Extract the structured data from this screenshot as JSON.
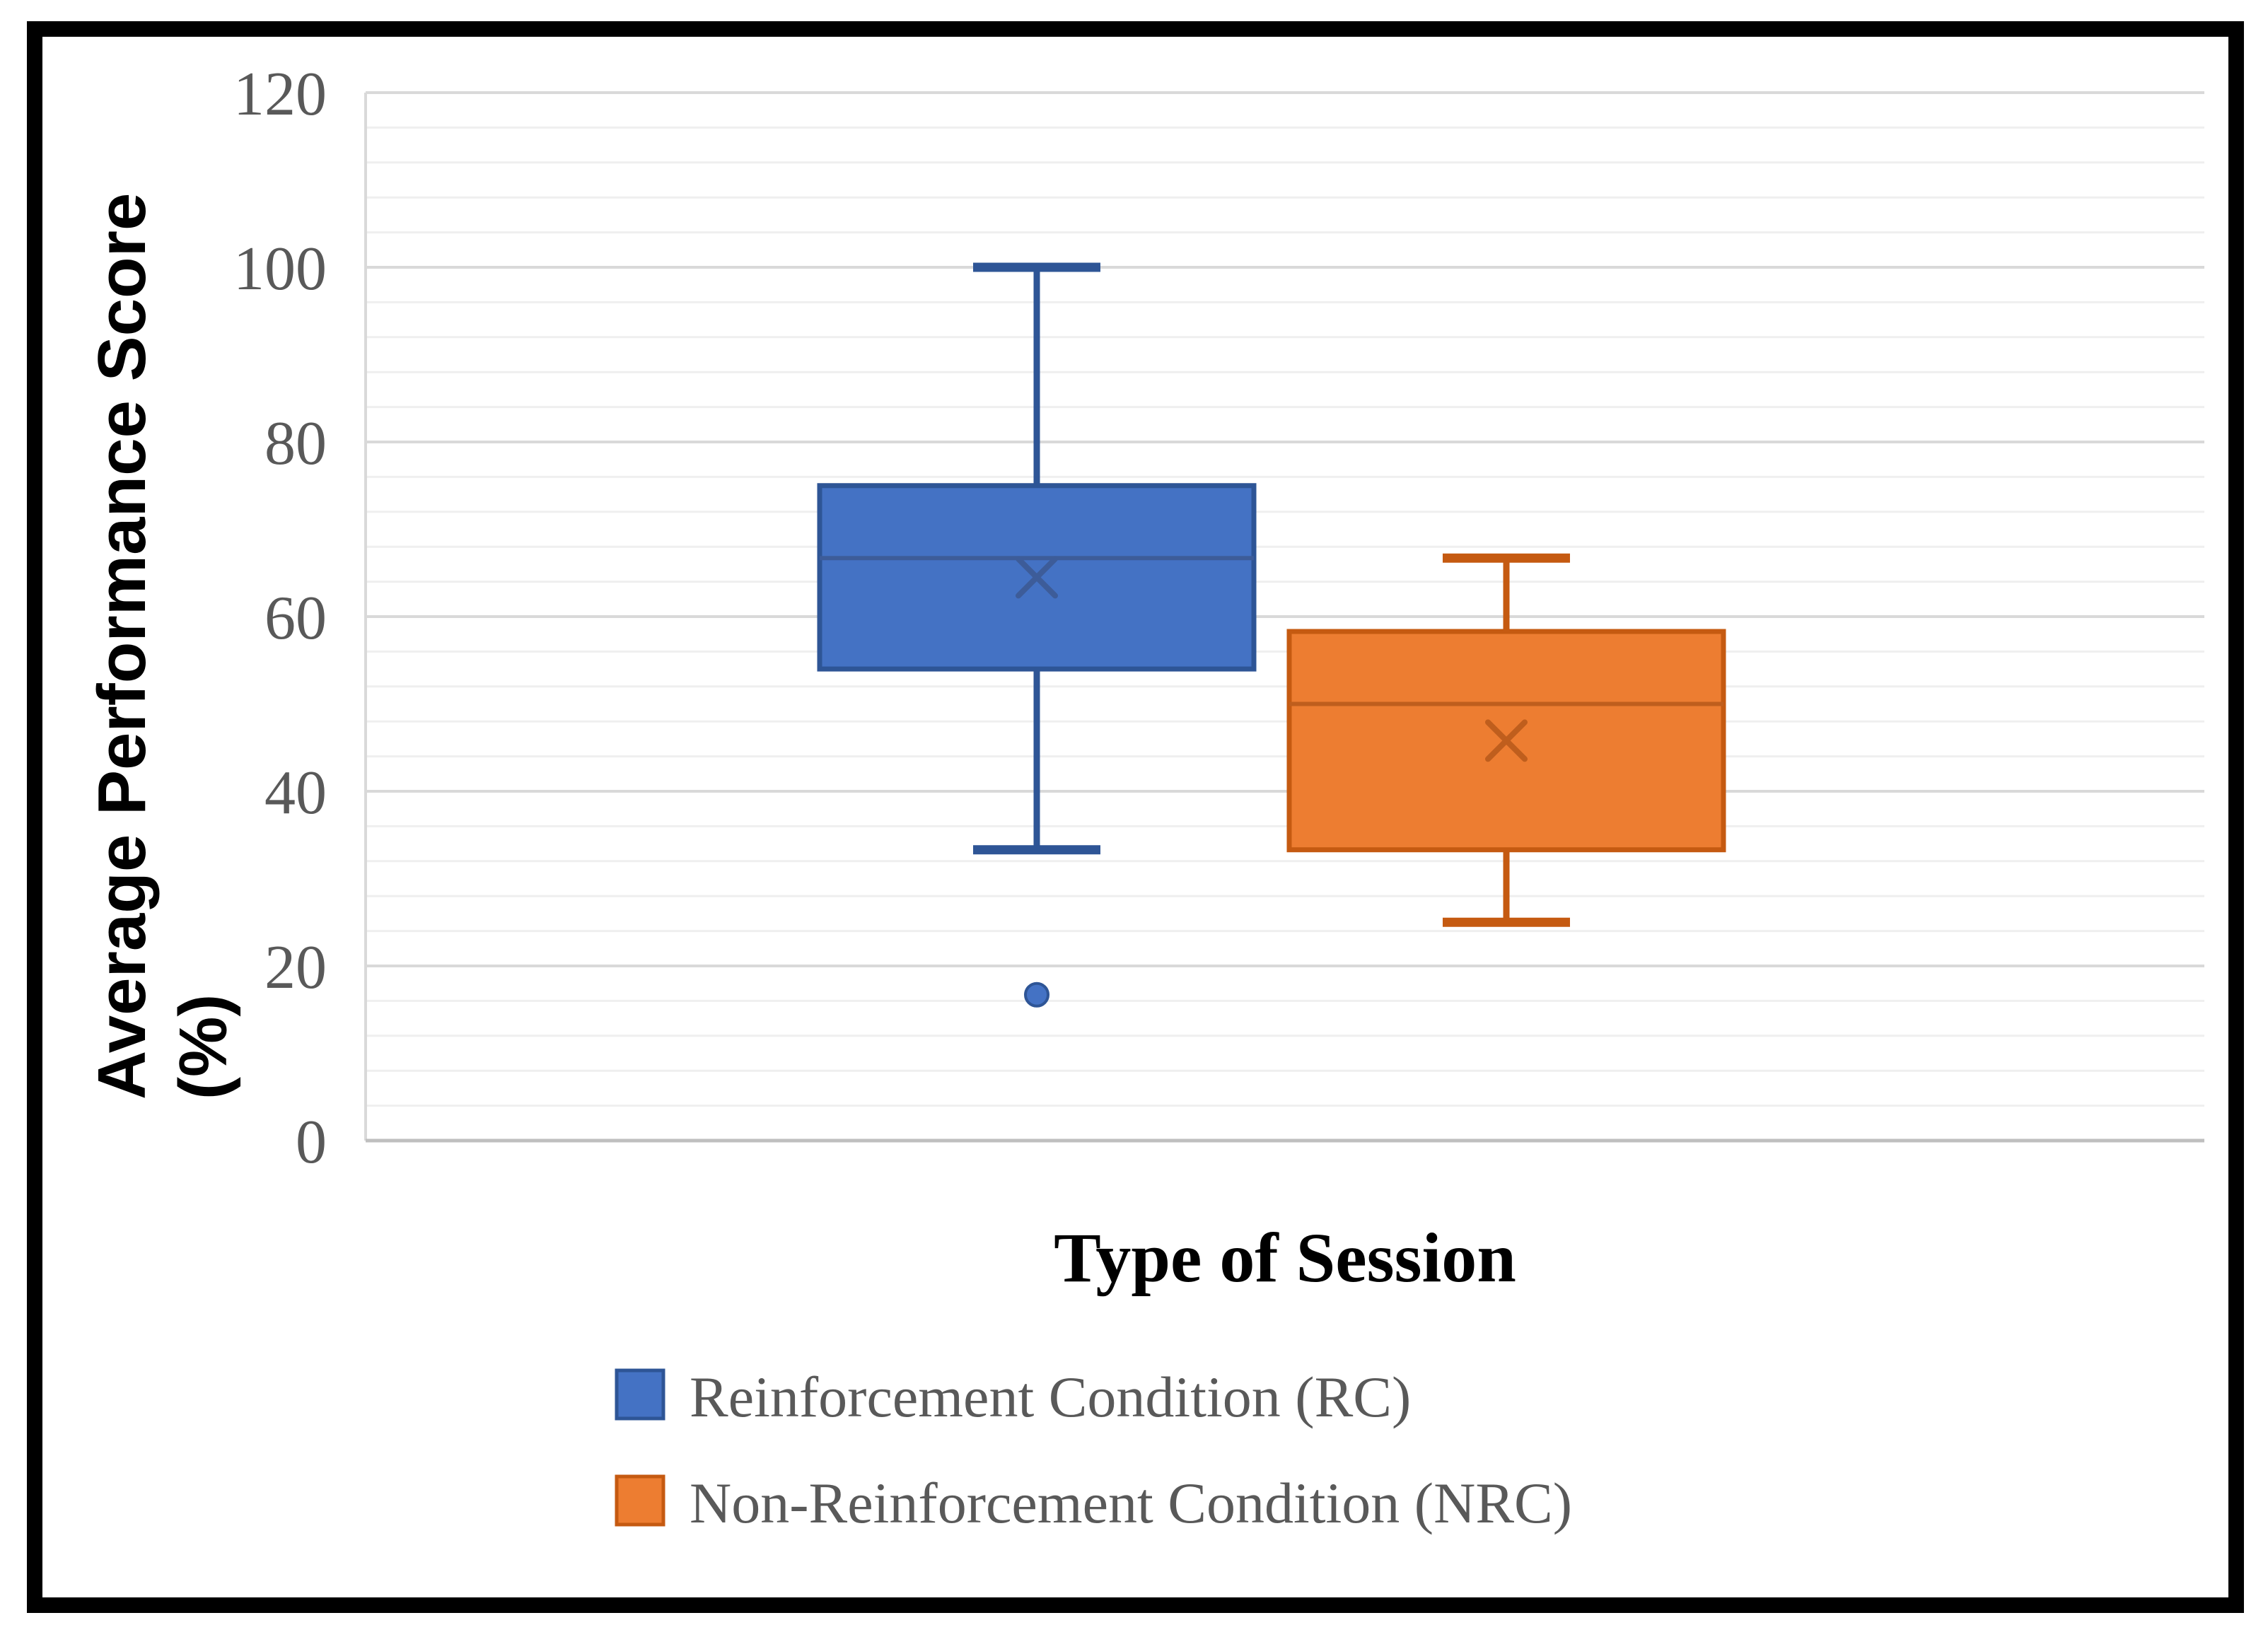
{
  "figure": {
    "background": "#FFFFFF",
    "border_color": "#000000"
  },
  "chart_data": {
    "type": "box",
    "title": "",
    "xlabel": "Type of Session",
    "ylabel_lines": [
      "Average Performance Score",
      "(%)"
    ],
    "ylim": [
      0,
      120
    ],
    "ytick_interval": 20,
    "yticks": [
      0,
      20,
      40,
      60,
      80,
      100,
      120
    ],
    "minor_gridline_interval": 4,
    "grid": true,
    "legend_position": "bottom",
    "series": [
      {
        "name": "Reinforcement Condition (RC)",
        "fill": "#4472C4",
        "border": "#2E5596",
        "detail": "#3D5C99",
        "whisker_low": 33.3,
        "q1": 54,
        "median": 66.7,
        "q3": 75,
        "whisker_high": 100,
        "mean": 64.5,
        "outliers": [
          16.7
        ]
      },
      {
        "name": "Non-Reinforcement Condition (NRC)",
        "fill": "#ED7D31",
        "border": "#C55A11",
        "detail": "#BF5E1D",
        "whisker_low": 25,
        "q1": 33.3,
        "median": 50,
        "q3": 58.3,
        "whisker_high": 66.7,
        "mean": 45.8,
        "outliers": []
      }
    ],
    "palette": {
      "major_gridline": "#D9D9D9",
      "minor_gridline": "#EFEFEF",
      "axis_line": "#BFBFBF",
      "left_axis_line": "#D9D9D9",
      "tick_label_color": "#595959",
      "legend_text_color": "#595959",
      "title_color": "#000000"
    }
  }
}
